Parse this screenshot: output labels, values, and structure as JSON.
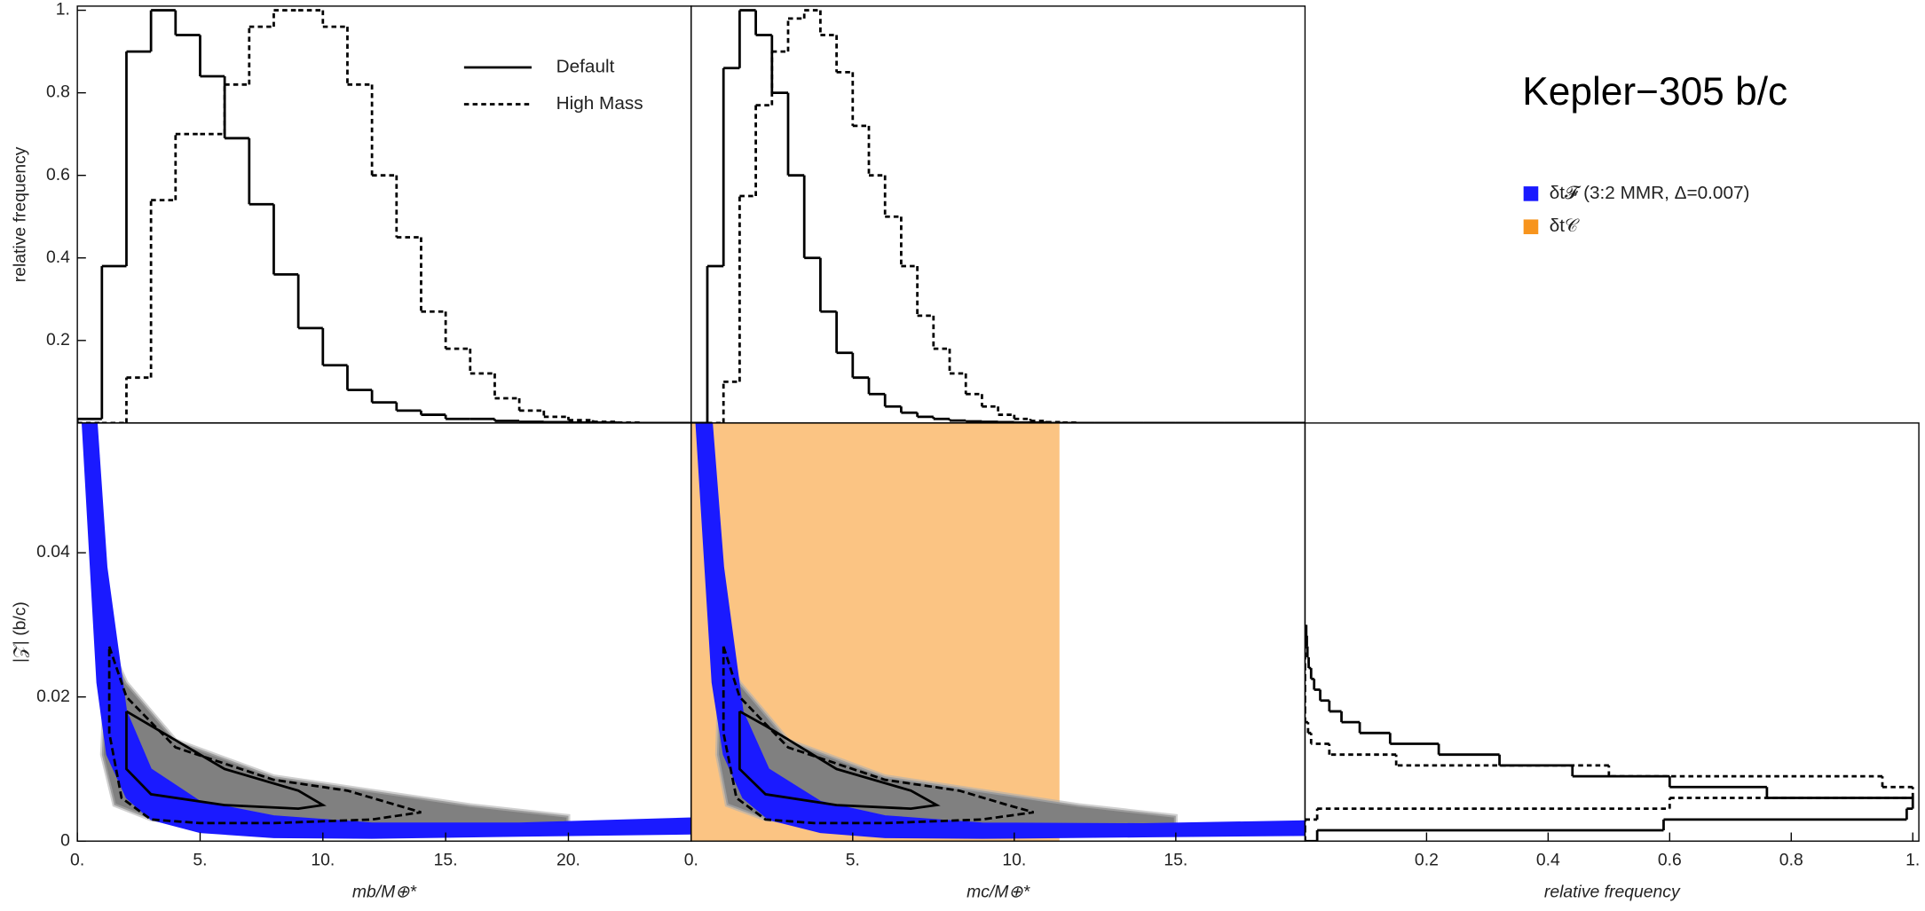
{
  "title": "Kepler−305 b/c",
  "chart_data": [
    {
      "type": "histogram",
      "orientation": "vertical",
      "ylabel": "relative frequency",
      "xlim": [
        0,
        25
      ],
      "ylim": [
        0,
        1.01
      ],
      "yticks": [
        0.2,
        0.4,
        0.6,
        0.8,
        {
          "value": 1,
          "label": "1."
        }
      ],
      "legend": "top-right",
      "bins": [
        0,
        1,
        2,
        3,
        4,
        5,
        6,
        7,
        8,
        9,
        10,
        11,
        12,
        13,
        14,
        15,
        16,
        17,
        18,
        19,
        20,
        21,
        22,
        23,
        24,
        25
      ],
      "series": [
        {
          "name": "Default",
          "color": "#000000",
          "style": "solid",
          "values": [
            0.01,
            0.38,
            0.9,
            1.0,
            0.94,
            0.84,
            0.69,
            0.53,
            0.36,
            0.23,
            0.14,
            0.08,
            0.05,
            0.03,
            0.02,
            0.01,
            0.01,
            0.005,
            0.003,
            0.002,
            0.001,
            0.001,
            0,
            0,
            0
          ]
        },
        {
          "name": "High Mass",
          "color": "#000000",
          "style": "dashed",
          "values": [
            0,
            0,
            0.11,
            0.54,
            0.7,
            0.7,
            0.82,
            0.96,
            1.0,
            1.0,
            0.96,
            0.82,
            0.6,
            0.45,
            0.27,
            0.18,
            0.12,
            0.06,
            0.03,
            0.015,
            0.007,
            0.003,
            0.001,
            0,
            0
          ]
        }
      ]
    },
    {
      "type": "histogram",
      "orientation": "vertical",
      "xlim": [
        0,
        19
      ],
      "ylim": [
        0,
        1.01
      ],
      "bins": [
        0,
        0.5,
        1,
        1.5,
        2,
        2.5,
        3,
        3.5,
        4,
        4.5,
        5,
        5.5,
        6,
        6.5,
        7,
        7.5,
        8,
        8.5,
        9,
        9.5,
        10,
        10.5,
        11,
        11.5,
        12,
        12.5,
        13,
        13.5,
        14,
        14.5,
        15,
        15.5,
        16,
        16.5,
        17,
        17.5,
        18,
        18.5,
        19
      ],
      "series": [
        {
          "color": "#000000",
          "style": "solid",
          "values": [
            0,
            0.38,
            0.86,
            1.0,
            0.94,
            0.8,
            0.6,
            0.4,
            0.27,
            0.17,
            0.11,
            0.07,
            0.04,
            0.025,
            0.015,
            0.01,
            0.006,
            0.004,
            0.003,
            0.002,
            0.001,
            0.001,
            0,
            0,
            0,
            0,
            0,
            0,
            0,
            0,
            0,
            0,
            0,
            0,
            0,
            0,
            0,
            0
          ]
        },
        {
          "color": "#000000",
          "style": "dashed",
          "values": [
            0,
            0,
            0.1,
            0.55,
            0.77,
            0.9,
            0.98,
            1.0,
            0.94,
            0.85,
            0.72,
            0.6,
            0.5,
            0.38,
            0.26,
            0.18,
            0.12,
            0.07,
            0.04,
            0.02,
            0.01,
            0.005,
            0.002,
            0.001,
            0,
            0,
            0,
            0,
            0,
            0,
            0,
            0,
            0,
            0,
            0,
            0,
            0,
            0
          ]
        }
      ]
    },
    {
      "type": "density",
      "xlabel": "mb/M⊕*",
      "ylabel": "|𝒵| (b/c)",
      "xlim": [
        0,
        25
      ],
      "ylim": [
        0,
        0.058
      ],
      "xticks": [
        {
          "value": 0,
          "label": "0."
        },
        {
          "value": 5,
          "label": "5."
        },
        {
          "value": 10,
          "label": "10."
        },
        {
          "value": 15,
          "label": "15."
        },
        {
          "value": 20,
          "label": "20."
        }
      ],
      "yticks": [
        0,
        0.02,
        0.04
      ],
      "cloud": {
        "color": "#808080",
        "x": [
          1.2,
          2,
          4,
          8,
          12,
          16,
          20,
          20,
          12,
          6,
          3,
          1.5,
          1
        ],
        "y": [
          0.028,
          0.022,
          0.014,
          0.009,
          0.007,
          0.005,
          0.0035,
          0.002,
          0.002,
          0.002,
          0.003,
          0.005,
          0.012
        ]
      },
      "band": {
        "color": "#1a1aff",
        "x": [
          0.2,
          0.5,
          0.8,
          1.2,
          2,
          3,
          5,
          8,
          12,
          18,
          25
        ],
        "lower": [
          0.058,
          0.04,
          0.022,
          0.012,
          0.006,
          0.003,
          0.0012,
          0.0005,
          0.0004,
          0.0007,
          0.001
        ],
        "upper": [
          0.058,
          0.058,
          0.058,
          0.038,
          0.018,
          0.01,
          0.0055,
          0.0035,
          0.0025,
          0.0025,
          0.0032
        ]
      },
      "contours": [
        {
          "style": "dashed",
          "x": [
            1.3,
            2,
            4,
            8,
            11,
            13,
            14,
            12,
            8,
            5,
            3,
            1.8,
            1.3,
            1.3
          ],
          "y": [
            0.027,
            0.02,
            0.013,
            0.0085,
            0.007,
            0.005,
            0.004,
            0.003,
            0.0025,
            0.0025,
            0.003,
            0.006,
            0.015,
            0.027
          ]
        },
        {
          "style": "solid",
          "x": [
            2,
            3,
            6,
            9,
            10,
            9,
            6,
            3,
            2,
            2
          ],
          "y": [
            0.018,
            0.016,
            0.01,
            0.007,
            0.005,
            0.0045,
            0.005,
            0.0065,
            0.01,
            0.018
          ]
        }
      ]
    },
    {
      "type": "density",
      "xlabel": "mc/M⊕*",
      "xlim": [
        0,
        19
      ],
      "ylim": [
        0,
        0.058
      ],
      "xticks": [
        {
          "value": 0,
          "label": "0."
        },
        {
          "value": 5,
          "label": "5."
        },
        {
          "value": 10,
          "label": "10."
        },
        {
          "value": 15,
          "label": "15."
        }
      ],
      "region": {
        "name": "δt𝒞",
        "color": "#f7941d",
        "x": [
          0,
          11.4
        ]
      },
      "cloud": {
        "color": "#808080",
        "x": [
          0.9,
          1.5,
          3,
          6,
          9,
          12,
          15,
          15,
          9,
          4.5,
          2.3,
          1.1,
          0.8
        ],
        "y": [
          0.028,
          0.022,
          0.014,
          0.009,
          0.007,
          0.005,
          0.0035,
          0.002,
          0.002,
          0.002,
          0.003,
          0.005,
          0.012
        ]
      },
      "band": {
        "name": "δt𝓕 (3:2 MMR, Δ=0.007)",
        "color": "#1a1aff",
        "x": [
          0.15,
          0.4,
          0.65,
          1,
          1.6,
          2.4,
          4,
          6,
          9,
          14,
          19
        ],
        "lower": [
          0.058,
          0.04,
          0.022,
          0.012,
          0.006,
          0.003,
          0.0012,
          0.0005,
          0.0004,
          0.0006,
          0.0008
        ],
        "upper": [
          0.058,
          0.058,
          0.058,
          0.038,
          0.018,
          0.01,
          0.0055,
          0.0035,
          0.0025,
          0.0024,
          0.0028
        ]
      },
      "contours": [
        {
          "style": "dashed",
          "x": [
            1,
            1.5,
            3,
            6,
            8.3,
            9.8,
            10.6,
            9,
            6,
            3.8,
            2.3,
            1.4,
            1,
            1
          ],
          "y": [
            0.027,
            0.02,
            0.013,
            0.0085,
            0.007,
            0.005,
            0.004,
            0.003,
            0.0025,
            0.0025,
            0.003,
            0.006,
            0.015,
            0.027
          ]
        },
        {
          "style": "solid",
          "x": [
            1.5,
            2.3,
            4.5,
            6.8,
            7.6,
            6.8,
            4.5,
            2.3,
            1.5,
            1.5
          ],
          "y": [
            0.018,
            0.016,
            0.01,
            0.007,
            0.005,
            0.0045,
            0.005,
            0.0065,
            0.01,
            0.018
          ]
        }
      ]
    },
    {
      "type": "histogram",
      "orientation": "horizontal",
      "xlabel": "relative frequency",
      "xlim": [
        0,
        1.01
      ],
      "ylim": [
        0,
        0.058
      ],
      "xticks": [
        0.2,
        0.4,
        0.6,
        0.8,
        {
          "value": 1,
          "label": "1."
        }
      ],
      "bins": [
        0,
        0.0015,
        0.003,
        0.0045,
        0.006,
        0.0075,
        0.009,
        0.0105,
        0.012,
        0.0135,
        0.015,
        0.0165,
        0.018,
        0.0195,
        0.021,
        0.0225,
        0.024,
        0.0255,
        0.027,
        0.0285,
        0.03
      ],
      "series": [
        {
          "color": "#000000",
          "style": "solid",
          "values": [
            0.02,
            0.59,
            0.99,
            1.0,
            0.76,
            0.6,
            0.44,
            0.32,
            0.22,
            0.14,
            0.09,
            0.06,
            0.04,
            0.025,
            0.015,
            0.01,
            0.006,
            0.004,
            0.003,
            0.002
          ]
        },
        {
          "color": "#000000",
          "style": "dashed",
          "values": [
            0,
            0,
            0.02,
            0.6,
            1.0,
            0.95,
            0.5,
            0.15,
            0.04,
            0.01,
            0.005,
            0,
            0,
            0,
            0,
            0,
            0,
            0,
            0,
            0
          ]
        }
      ]
    }
  ]
}
